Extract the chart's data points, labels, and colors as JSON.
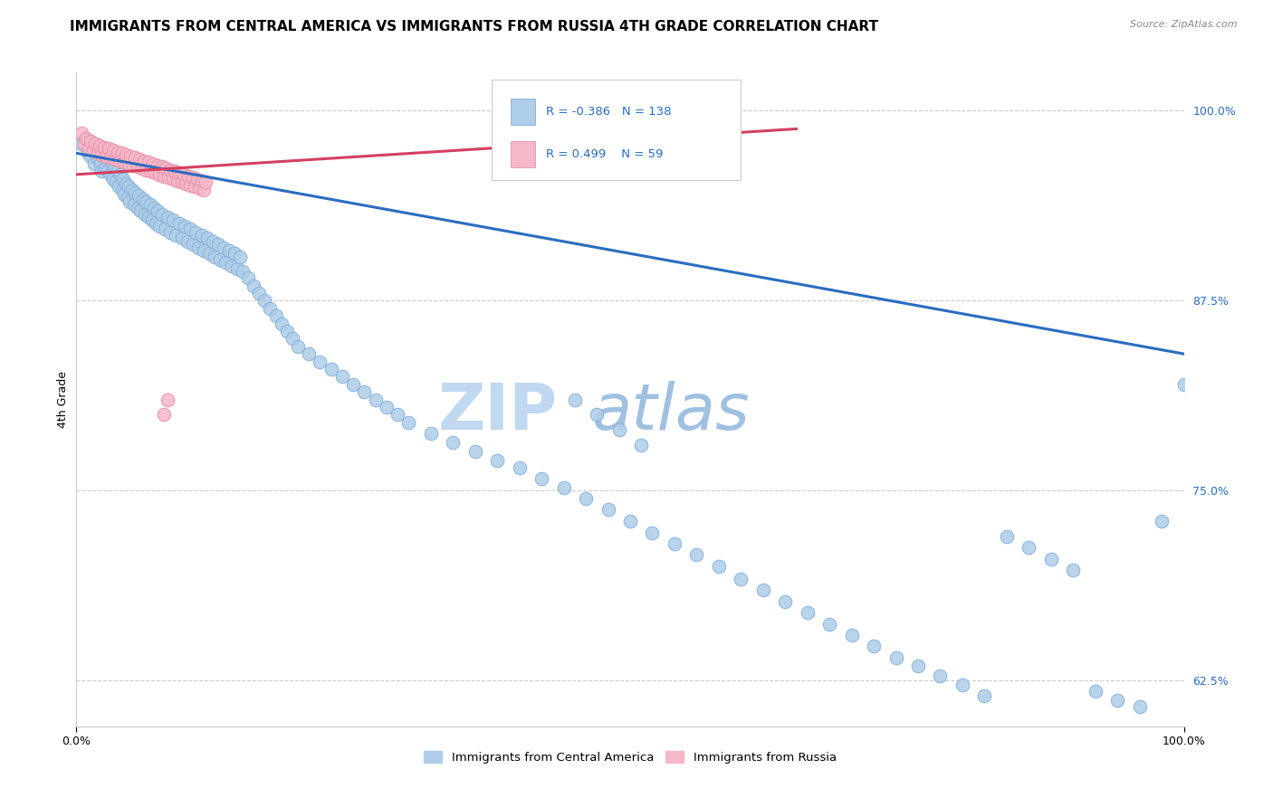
{
  "title": "IMMIGRANTS FROM CENTRAL AMERICA VS IMMIGRANTS FROM RUSSIA 4TH GRADE CORRELATION CHART",
  "source_text": "Source: ZipAtlas.com",
  "ylabel": "4th Grade",
  "watermark_zip": "ZIP",
  "watermark_atlas": "atlas",
  "xlim": [
    0.0,
    1.0
  ],
  "ylim": [
    0.595,
    1.025
  ],
  "yticks": [
    0.625,
    0.75,
    0.875,
    1.0
  ],
  "ytick_labels": [
    "62.5%",
    "75.0%",
    "87.5%",
    "100.0%"
  ],
  "xticks": [
    0.0,
    1.0
  ],
  "xtick_labels": [
    "0.0%",
    "100.0%"
  ],
  "legend_R_blue": "-0.386",
  "legend_N_blue": "138",
  "legend_R_pink": "0.499",
  "legend_N_pink": "59",
  "legend_label_blue": "Immigrants from Central America",
  "legend_label_pink": "Immigrants from Russia",
  "blue_scatter_x": [
    0.005,
    0.008,
    0.01,
    0.012,
    0.013,
    0.015,
    0.016,
    0.018,
    0.02,
    0.021,
    0.022,
    0.023,
    0.025,
    0.026,
    0.027,
    0.028,
    0.03,
    0.031,
    0.032,
    0.033,
    0.035,
    0.036,
    0.037,
    0.038,
    0.04,
    0.041,
    0.042,
    0.043,
    0.045,
    0.046,
    0.047,
    0.048,
    0.05,
    0.052,
    0.053,
    0.055,
    0.056,
    0.058,
    0.06,
    0.062,
    0.063,
    0.065,
    0.067,
    0.068,
    0.07,
    0.072,
    0.073,
    0.075,
    0.077,
    0.08,
    0.082,
    0.085,
    0.087,
    0.09,
    0.093,
    0.095,
    0.098,
    0.1,
    0.103,
    0.105,
    0.108,
    0.11,
    0.113,
    0.115,
    0.118,
    0.12,
    0.123,
    0.125,
    0.128,
    0.13,
    0.133,
    0.135,
    0.138,
    0.14,
    0.143,
    0.145,
    0.148,
    0.15,
    0.155,
    0.16,
    0.165,
    0.17,
    0.175,
    0.18,
    0.185,
    0.19,
    0.195,
    0.2,
    0.21,
    0.22,
    0.23,
    0.24,
    0.25,
    0.26,
    0.27,
    0.28,
    0.29,
    0.3,
    0.32,
    0.34,
    0.36,
    0.38,
    0.4,
    0.42,
    0.44,
    0.46,
    0.48,
    0.5,
    0.52,
    0.54,
    0.56,
    0.58,
    0.6,
    0.62,
    0.64,
    0.66,
    0.68,
    0.7,
    0.72,
    0.74,
    0.76,
    0.78,
    0.8,
    0.82,
    0.84,
    0.86,
    0.88,
    0.9,
    0.92,
    0.94,
    0.96,
    0.98,
    1.0,
    0.45,
    0.47,
    0.49,
    0.51,
    0.53
  ],
  "blue_scatter_y": [
    0.978,
    0.982,
    0.972,
    0.98,
    0.97,
    0.975,
    0.965,
    0.978,
    0.968,
    0.975,
    0.965,
    0.96,
    0.97,
    0.962,
    0.972,
    0.96,
    0.968,
    0.958,
    0.965,
    0.955,
    0.963,
    0.953,
    0.96,
    0.95,
    0.958,
    0.948,
    0.955,
    0.945,
    0.952,
    0.943,
    0.95,
    0.94,
    0.948,
    0.938,
    0.946,
    0.936,
    0.944,
    0.934,
    0.942,
    0.932,
    0.94,
    0.93,
    0.938,
    0.928,
    0.936,
    0.926,
    0.934,
    0.924,
    0.932,
    0.922,
    0.93,
    0.92,
    0.928,
    0.918,
    0.926,
    0.916,
    0.924,
    0.914,
    0.922,
    0.912,
    0.92,
    0.91,
    0.918,
    0.908,
    0.916,
    0.906,
    0.914,
    0.904,
    0.912,
    0.902,
    0.91,
    0.9,
    0.908,
    0.898,
    0.906,
    0.896,
    0.904,
    0.894,
    0.89,
    0.885,
    0.88,
    0.875,
    0.87,
    0.865,
    0.86,
    0.855,
    0.85,
    0.845,
    0.84,
    0.835,
    0.83,
    0.825,
    0.82,
    0.815,
    0.81,
    0.805,
    0.8,
    0.795,
    0.788,
    0.782,
    0.776,
    0.77,
    0.765,
    0.758,
    0.752,
    0.745,
    0.738,
    0.73,
    0.722,
    0.715,
    0.708,
    0.7,
    0.692,
    0.685,
    0.677,
    0.67,
    0.662,
    0.655,
    0.648,
    0.64,
    0.635,
    0.628,
    0.622,
    0.615,
    0.72,
    0.713,
    0.705,
    0.698,
    0.618,
    0.612,
    0.608,
    0.73,
    0.82,
    0.81,
    0.8,
    0.79,
    0.78
  ],
  "pink_scatter_x": [
    0.005,
    0.007,
    0.009,
    0.011,
    0.013,
    0.015,
    0.017,
    0.019,
    0.021,
    0.023,
    0.025,
    0.027,
    0.029,
    0.031,
    0.033,
    0.035,
    0.037,
    0.039,
    0.041,
    0.043,
    0.045,
    0.047,
    0.049,
    0.051,
    0.053,
    0.055,
    0.057,
    0.059,
    0.061,
    0.063,
    0.065,
    0.067,
    0.069,
    0.071,
    0.073,
    0.075,
    0.077,
    0.079,
    0.081,
    0.083,
    0.085,
    0.087,
    0.089,
    0.091,
    0.093,
    0.095,
    0.097,
    0.099,
    0.101,
    0.103,
    0.105,
    0.107,
    0.109,
    0.111,
    0.113,
    0.115,
    0.117,
    0.079,
    0.082
  ],
  "pink_scatter_y": [
    0.985,
    0.978,
    0.982,
    0.975,
    0.98,
    0.974,
    0.978,
    0.972,
    0.977,
    0.971,
    0.976,
    0.97,
    0.975,
    0.969,
    0.974,
    0.968,
    0.973,
    0.967,
    0.972,
    0.966,
    0.971,
    0.965,
    0.97,
    0.964,
    0.969,
    0.963,
    0.968,
    0.962,
    0.967,
    0.961,
    0.966,
    0.96,
    0.965,
    0.959,
    0.964,
    0.958,
    0.963,
    0.957,
    0.962,
    0.956,
    0.961,
    0.955,
    0.96,
    0.954,
    0.959,
    0.953,
    0.958,
    0.952,
    0.957,
    0.951,
    0.956,
    0.95,
    0.955,
    0.949,
    0.954,
    0.948,
    0.953,
    0.8,
    0.81
  ],
  "blue_line_x": [
    0.0,
    1.0
  ],
  "blue_line_y": [
    0.972,
    0.84
  ],
  "pink_line_x": [
    0.0,
    0.65
  ],
  "pink_line_y": [
    0.958,
    0.988
  ],
  "blue_line_color": "#2b6cbf",
  "pink_line_color": "#d44060",
  "blue_scatter_color": "#aecde8",
  "pink_scatter_color": "#f5b8c8",
  "blue_scatter_edge": "#85afd8",
  "pink_scatter_edge": "#e890a8",
  "stat_color": "#2b6cbf",
  "title_fontsize": 11,
  "axis_label_fontsize": 9,
  "tick_fontsize": 9,
  "watermark_fontsize_zip": 52,
  "watermark_fontsize_atlas": 52,
  "watermark_color_zip": "#c0d8f0",
  "watermark_color_atlas": "#a0c0e0"
}
